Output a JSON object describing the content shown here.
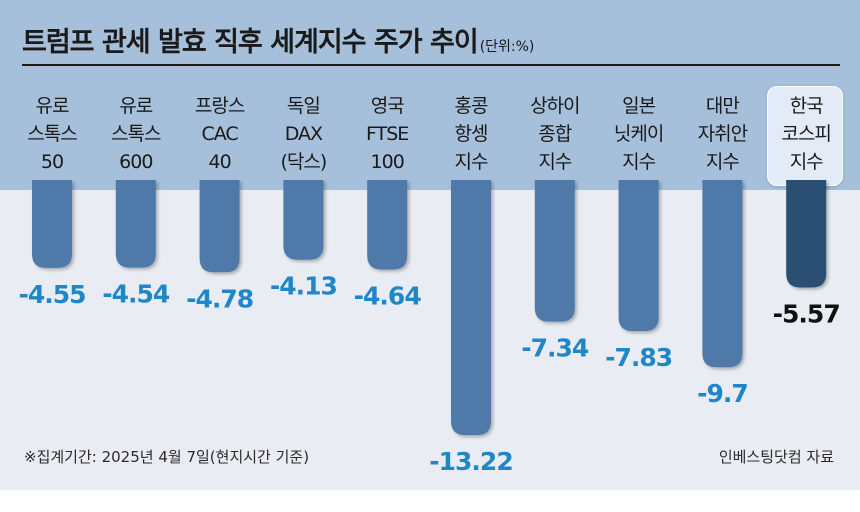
{
  "title": "트럼프 관세 발효 직후 세계지수 주가 추이",
  "unit": "(단위:%)",
  "footnote": "※집계기간: 2025년 4월 7일(현지시간 기준)",
  "source": "인베스팅닷컴 자료",
  "colors": {
    "bar": "#4f79a8",
    "bar_highlight": "#2b4f73",
    "label": "#1f86c8",
    "label_highlight": "#111111"
  },
  "chart_data": {
    "type": "bar",
    "categories": [
      [
        "유로",
        "스톡스",
        "50"
      ],
      [
        "유로",
        "스톡스",
        "600"
      ],
      [
        "프랑스",
        "CAC",
        "40"
      ],
      [
        "독일",
        "DAX",
        "(닥스)"
      ],
      [
        "영국",
        "FTSE",
        "100"
      ],
      [
        "홍콩",
        "항셍",
        "지수"
      ],
      [
        "상하이",
        "종합",
        "지수"
      ],
      [
        "일본",
        "닛케이",
        "지수"
      ],
      [
        "대만",
        "자취안",
        "지수"
      ],
      [
        "한국",
        "코스피",
        "지수"
      ]
    ],
    "values": [
      -4.55,
      -4.54,
      -4.78,
      -4.13,
      -4.64,
      -13.22,
      -7.34,
      -7.83,
      -9.7,
      -5.57
    ],
    "value_labels": [
      "-4.55",
      "-4.54",
      "-4.78",
      "-4.13",
      "-4.64",
      "-13.22",
      "-7.34",
      "-7.83",
      "-9.7",
      "-5.57"
    ],
    "highlight_index": 9,
    "xlabel": "",
    "ylabel": "",
    "grid": false
  }
}
